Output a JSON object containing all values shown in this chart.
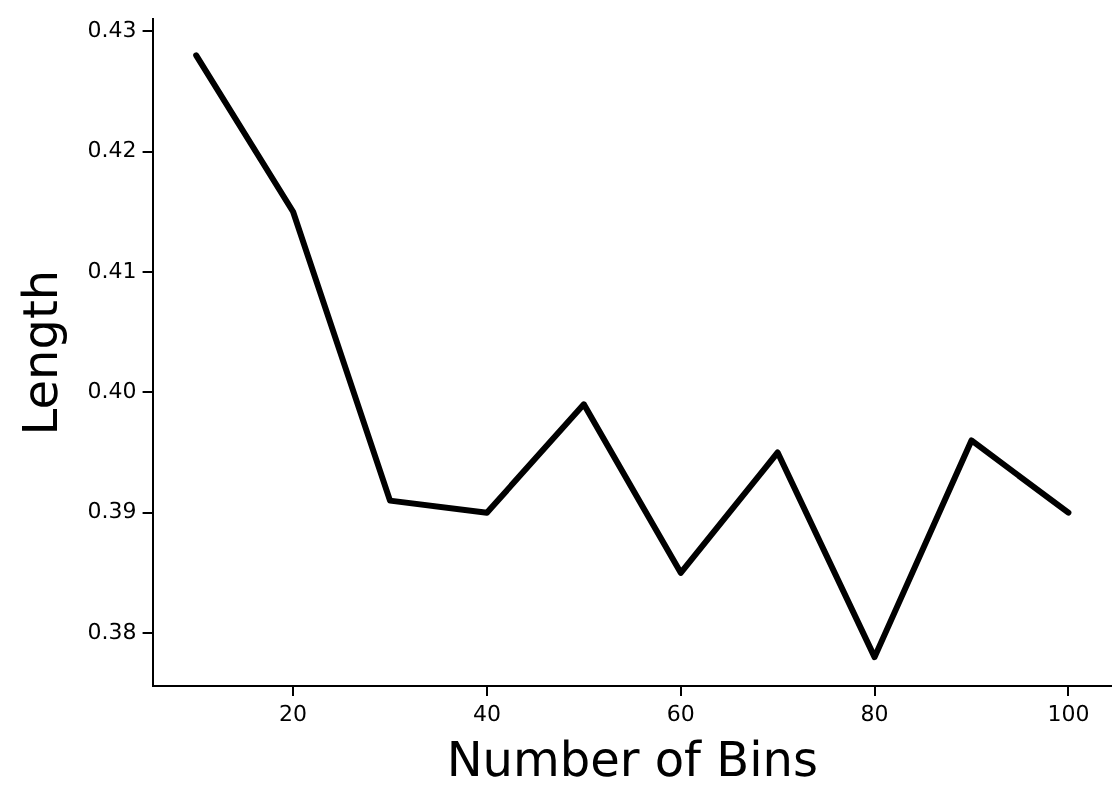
{
  "chart_data": {
    "type": "line",
    "xlabel": "Number of Bins",
    "ylabel": "Length",
    "x": [
      10,
      20,
      30,
      40,
      50,
      60,
      70,
      80,
      90,
      100
    ],
    "series": [
      {
        "color": "#000000",
        "values": [
          0.428,
          0.415,
          0.391,
          0.39,
          0.399,
          0.385,
          0.395,
          0.378,
          0.396,
          0.39
        ]
      }
    ],
    "xlim": [
      5.5,
      104.5
    ],
    "xticks": [
      20,
      40,
      60,
      80,
      100
    ],
    "ylim": [
      0.3756,
      0.431
    ],
    "yticks": [
      0.38,
      0.39,
      {
        "value": 0.4,
        "label": "0.40"
      },
      0.41,
      0.42,
      0.43
    ],
    "grid": false,
    "legend": false,
    "marker": "none",
    "line_style": "solid"
  }
}
